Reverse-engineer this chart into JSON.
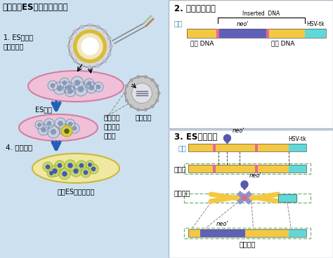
{
  "bg_color": "#cce0f0",
  "title_left": "第一步：ES细胞的基因打靶",
  "title_right1": "2. 打靶载体构建",
  "title_right2": "3. ES细胞电转",
  "label1": "1. ES细胞的\n分离与培养",
  "label2": "ES细胞",
  "label3": "少量的细\n胞携带中\n靶基因",
  "label4": "中靶基因",
  "label5": "4. 药物筛选",
  "label6": "中靶ES细胞的扩增",
  "carrier_label": "载体",
  "inserted_dna": "Inserted  DNA",
  "neo_label": "neo'",
  "hsv_label": "HSV-tk",
  "homolog_dna1": "同源 DNA",
  "homolog_dna2": "同源 DNA",
  "target_gene": "靶基因",
  "homolog_recomb": "同源重组",
  "zhong_ba": "中靶基因",
  "color_yellow": "#f5c842",
  "color_purple": "#6060b8",
  "color_cyan": "#60d8d8",
  "color_pink": "#e86890",
  "color_blue_arrow": "#2060b8",
  "color_text_blue": "#4090b8",
  "color_white": "#ffffff",
  "color_pink_dish": "#f0c0d8",
  "color_pink_rim": "#d080a0",
  "color_gray_cell": "#c8d0e0",
  "color_nucleus": "#8898b8",
  "color_yellow_cell": "#d8cc40",
  "color_blue_cell": "#4858b0",
  "color_blue_cell_inner": "#8888e0"
}
